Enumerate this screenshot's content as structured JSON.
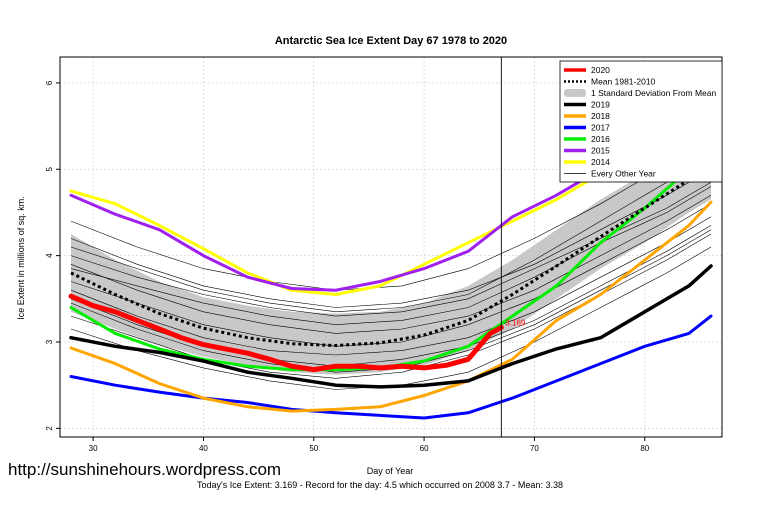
{
  "chart_data": {
    "type": "line",
    "title": "Antarctic Sea Ice Extent Day 67 1978 to 2020",
    "xlabel": "Day of Year",
    "ylabel": "Ice Extent in millions of sq. km.",
    "xlim": [
      27,
      87
    ],
    "ylim": [
      1.9,
      6.3
    ],
    "x_ticks": [
      30,
      40,
      50,
      60,
      70,
      80
    ],
    "y_ticks": [
      2,
      3,
      4,
      5,
      6
    ],
    "grid": true,
    "legend_position": "top-right",
    "marker_day": 67,
    "marker_label": "3.169",
    "footnote": "Today's Ice Extent: 3.169  - Record for the day: 4.5 which occurred on 2008 3.7  - Mean: 3.38",
    "legend": [
      {
        "label": "2020",
        "color": "#ff0000",
        "style": "thick"
      },
      {
        "label": "Mean 1981-2010",
        "color": "#000000",
        "style": "dotted"
      },
      {
        "label": "1 Standard Deviation From Mean",
        "color": "#c8c8c8",
        "style": "band"
      },
      {
        "label": "2019",
        "color": "#000000",
        "style": "thick"
      },
      {
        "label": "2018",
        "color": "#ffa500",
        "style": "thick"
      },
      {
        "label": "2017",
        "color": "#0000ff",
        "style": "thick"
      },
      {
        "label": "2016",
        "color": "#00ee00",
        "style": "thick"
      },
      {
        "label": "2015",
        "color": "#a020f0",
        "style": "thick"
      },
      {
        "label": "2014",
        "color": "#ffff00",
        "style": "thick"
      },
      {
        "label": "Every Other Year",
        "color": "#000000",
        "style": "thin"
      }
    ],
    "std_band": {
      "x": [
        28,
        32,
        36,
        40,
        44,
        48,
        52,
        56,
        60,
        64,
        68,
        72,
        76,
        80,
        84,
        86
      ],
      "upper": [
        4.25,
        3.95,
        3.7,
        3.52,
        3.42,
        3.35,
        3.33,
        3.35,
        3.45,
        3.65,
        3.95,
        4.3,
        4.65,
        4.95,
        5.3,
        5.45
      ],
      "lower": [
        3.35,
        3.15,
        2.97,
        2.83,
        2.73,
        2.65,
        2.62,
        2.65,
        2.73,
        2.9,
        3.15,
        3.5,
        3.85,
        4.15,
        4.5,
        4.65
      ]
    },
    "mean": {
      "x": [
        28,
        32,
        36,
        40,
        44,
        48,
        52,
        56,
        60,
        64,
        68,
        72,
        76,
        80,
        84,
        86
      ],
      "y": [
        3.8,
        3.55,
        3.33,
        3.16,
        3.05,
        2.98,
        2.96,
        2.99,
        3.08,
        3.25,
        3.55,
        3.88,
        4.22,
        4.55,
        4.88,
        5.02
      ]
    },
    "series": [
      {
        "name": "2020",
        "color": "#ff0000",
        "width": 5,
        "x": [
          28,
          30,
          32,
          34,
          36,
          38,
          40,
          42,
          44,
          46,
          48,
          50,
          52,
          54,
          56,
          58,
          60,
          62,
          64,
          65,
          66,
          67
        ],
        "y": [
          3.53,
          3.42,
          3.35,
          3.25,
          3.15,
          3.05,
          2.97,
          2.92,
          2.87,
          2.8,
          2.72,
          2.68,
          2.72,
          2.72,
          2.7,
          2.72,
          2.7,
          2.73,
          2.8,
          2.95,
          3.1,
          3.169
        ]
      },
      {
        "name": "2019",
        "color": "#000000",
        "width": 3.5,
        "x": [
          28,
          32,
          36,
          40,
          44,
          48,
          52,
          56,
          60,
          64,
          68,
          72,
          76,
          80,
          84,
          86
        ],
        "y": [
          3.05,
          2.95,
          2.88,
          2.78,
          2.65,
          2.58,
          2.5,
          2.48,
          2.5,
          2.55,
          2.75,
          2.92,
          3.05,
          3.35,
          3.65,
          3.88
        ]
      },
      {
        "name": "2018",
        "color": "#ffa500",
        "width": 3,
        "x": [
          28,
          32,
          36,
          40,
          44,
          48,
          52,
          56,
          60,
          64,
          68,
          72,
          76,
          80,
          84,
          86
        ],
        "y": [
          2.93,
          2.75,
          2.52,
          2.35,
          2.25,
          2.2,
          2.22,
          2.25,
          2.38,
          2.55,
          2.8,
          3.25,
          3.55,
          3.95,
          4.35,
          4.62
        ]
      },
      {
        "name": "2017",
        "color": "#0000ff",
        "width": 3,
        "x": [
          28,
          32,
          36,
          40,
          44,
          48,
          52,
          56,
          60,
          64,
          68,
          72,
          76,
          80,
          84,
          86
        ],
        "y": [
          2.6,
          2.5,
          2.42,
          2.35,
          2.3,
          2.22,
          2.18,
          2.15,
          2.12,
          2.18,
          2.35,
          2.55,
          2.75,
          2.95,
          3.1,
          3.3
        ]
      },
      {
        "name": "2016",
        "color": "#00ee00",
        "width": 3,
        "x": [
          28,
          32,
          36,
          40,
          44,
          48,
          52,
          56,
          60,
          64,
          68,
          72,
          76,
          80,
          84,
          86
        ],
        "y": [
          3.4,
          3.1,
          2.92,
          2.8,
          2.72,
          2.68,
          2.68,
          2.7,
          2.78,
          2.95,
          3.3,
          3.65,
          4.15,
          4.55,
          5.0,
          5.18
        ]
      },
      {
        "name": "2015",
        "color": "#a020f0",
        "width": 3,
        "x": [
          28,
          32,
          36,
          40,
          44,
          48,
          52,
          56,
          60,
          64,
          68,
          72,
          76,
          80,
          84,
          86
        ],
        "y": [
          4.7,
          4.48,
          4.3,
          4.0,
          3.75,
          3.62,
          3.6,
          3.7,
          3.85,
          4.05,
          4.45,
          4.7,
          5.0,
          5.4,
          5.85,
          6.02
        ]
      },
      {
        "name": "2014",
        "color": "#ffff00",
        "width": 3,
        "x": [
          28,
          32,
          36,
          40,
          44,
          48,
          52,
          56,
          60,
          64,
          68,
          72,
          76,
          80,
          84,
          86
        ],
        "y": [
          4.75,
          4.6,
          4.35,
          4.08,
          3.8,
          3.6,
          3.55,
          3.65,
          3.9,
          4.15,
          4.4,
          4.65,
          4.95,
          5.35,
          5.8,
          6.0
        ]
      }
    ],
    "background_years": {
      "x": [
        28,
        34,
        40,
        46,
        52,
        58,
        64,
        70,
        76,
        82,
        86
      ],
      "lines": [
        [
          4.2,
          3.9,
          3.65,
          3.5,
          3.4,
          3.45,
          3.6,
          3.9,
          4.3,
          4.7,
          5.0
        ],
        [
          4.0,
          3.75,
          3.55,
          3.4,
          3.3,
          3.35,
          3.5,
          3.85,
          4.2,
          4.55,
          4.85
        ],
        [
          3.9,
          3.6,
          3.35,
          3.2,
          3.1,
          3.15,
          3.3,
          3.6,
          4.0,
          4.4,
          4.7
        ],
        [
          3.7,
          3.45,
          3.2,
          3.05,
          2.95,
          3.0,
          3.2,
          3.5,
          3.9,
          4.3,
          4.6
        ],
        [
          3.6,
          3.3,
          3.05,
          2.9,
          2.85,
          2.9,
          3.05,
          3.35,
          3.75,
          4.15,
          4.45
        ],
        [
          3.5,
          3.2,
          2.95,
          2.8,
          2.72,
          2.8,
          2.95,
          3.25,
          3.65,
          4.05,
          4.35
        ],
        [
          3.3,
          3.05,
          2.8,
          2.65,
          2.58,
          2.65,
          2.85,
          3.15,
          3.55,
          3.95,
          4.25
        ],
        [
          3.15,
          2.9,
          2.7,
          2.55,
          2.45,
          2.5,
          2.65,
          3.0,
          3.4,
          3.8,
          4.1
        ],
        [
          4.4,
          4.1,
          3.85,
          3.7,
          3.6,
          3.65,
          3.85,
          4.2,
          4.6,
          5.05,
          5.35
        ],
        [
          3.85,
          3.65,
          3.45,
          3.3,
          3.2,
          3.25,
          3.4,
          3.75,
          4.15,
          4.5,
          4.8
        ],
        [
          4.1,
          3.85,
          3.6,
          3.45,
          3.35,
          3.4,
          3.55,
          3.95,
          4.4,
          4.85,
          5.15
        ],
        [
          3.45,
          3.15,
          2.9,
          2.75,
          2.65,
          2.7,
          2.9,
          3.2,
          3.6,
          4.0,
          4.3
        ]
      ]
    }
  },
  "texts": {
    "watermark": "http://sunshinehours.wordpress.com",
    "footnote": "Today's Ice Extent: 3.169  - Record for the day: 4.5 which occurred on 2008 3.7  - Mean: 3.38"
  }
}
